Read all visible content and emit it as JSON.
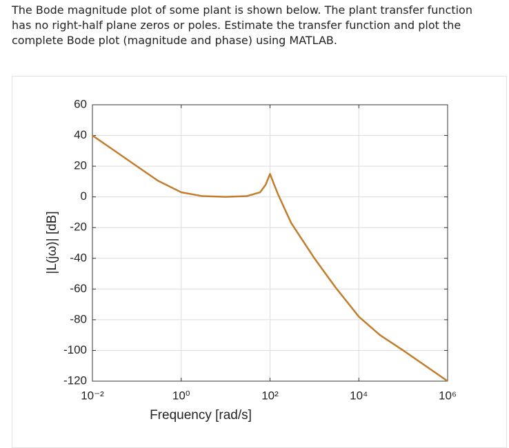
{
  "question": "The Bode magnitude plot of some plant is shown below. The plant transfer function has no right-half plane zeros or poles. Estimate the transfer function and plot the complete Bode plot (magnitude and phase) using MATLAB.",
  "chart_data": {
    "type": "line",
    "xlabel": "Frequency [rad/s]",
    "ylabel": "|L(jω)| [dB]",
    "x": [
      0.01,
      0.03,
      0.1,
      0.3,
      1,
      3,
      10,
      30,
      60,
      80,
      100,
      120,
      150,
      200,
      300,
      1000,
      3000,
      10000,
      30000,
      100000,
      1000000
    ],
    "values": [
      40,
      30.5,
      20,
      10.5,
      3,
      0.5,
      0,
      0.5,
      3,
      8,
      15,
      9,
      2,
      -6,
      -17,
      -40,
      -59,
      -78,
      -90,
      -100,
      -120
    ],
    "color": "#c27c2c",
    "xscale": "log",
    "xlim": [
      0.01,
      1000000
    ],
    "xticks": [
      {
        "value": 0.01,
        "label": "10⁻²"
      },
      {
        "value": 1,
        "label": "10⁰"
      },
      {
        "value": 100,
        "label": "10²"
      },
      {
        "value": 10000,
        "label": "10⁴"
      },
      {
        "value": 1000000,
        "label": "10⁶"
      }
    ],
    "ylim": [
      -120,
      60
    ],
    "yticks": [
      -120,
      -100,
      -80,
      -60,
      -40,
      -20,
      0,
      20,
      40,
      60
    ],
    "grid": true
  }
}
